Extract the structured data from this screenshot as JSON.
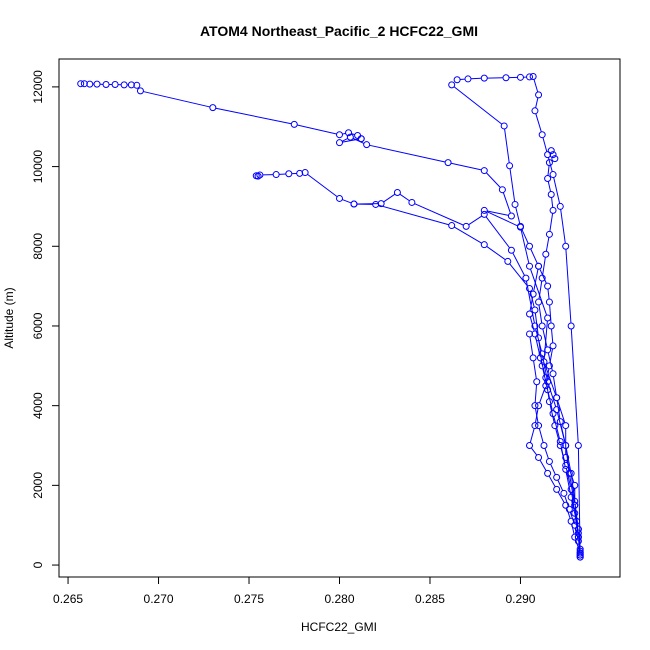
{
  "chart_data": {
    "type": "line",
    "title": "ATOM4 Northeast_Pacific_2 HCFC22_GMI",
    "xlabel": "HCFC22_GMI",
    "ylabel": "Altitude (m)",
    "xlim": [
      0.2645,
      0.2955
    ],
    "ylim": [
      -300,
      12700
    ],
    "xticks": [
      0.265,
      0.27,
      0.275,
      0.28,
      0.285,
      0.29
    ],
    "xtick_labels": [
      "0.265",
      "0.270",
      "0.275",
      "0.280",
      "0.285",
      "0.290"
    ],
    "yticks": [
      0,
      2000,
      4000,
      6000,
      8000,
      10000,
      12000
    ],
    "ytick_labels": [
      "0",
      "2000",
      "4000",
      "6000",
      "8000",
      "10000",
      "12000"
    ],
    "grid": false,
    "legend": "none",
    "series_color": "#0000ff",
    "marker": "open-circle",
    "series": [
      {
        "x": [
          0.2657,
          0.2659,
          0.2662,
          0.2666,
          0.2671,
          0.2676,
          0.2681,
          0.2685,
          0.2688,
          0.269,
          0.273,
          0.2775,
          0.28,
          0.2805,
          0.281,
          0.2812
        ],
        "y": [
          12080,
          12080,
          12070,
          12070,
          12060,
          12060,
          12050,
          12050,
          12040,
          11900,
          11480,
          11060,
          10800,
          10850,
          10780,
          10700
        ]
      },
      {
        "x": [
          0.2812,
          0.28,
          0.2806,
          0.2815,
          0.286,
          0.288,
          0.289,
          0.2895,
          0.288,
          0.29,
          0.2905,
          0.2915,
          0.2913,
          0.292,
          0.2925,
          0.2925,
          0.293,
          0.293,
          0.2931,
          0.2932,
          0.2933
        ],
        "y": [
          10700,
          10600,
          10740,
          10550,
          10100,
          9900,
          9420,
          8760,
          8900,
          8480,
          7500,
          6200,
          5100,
          4200,
          3500,
          2700,
          2000,
          1500,
          1100,
          700,
          300
        ]
      },
      {
        "x": [
          0.2755,
          0.2754,
          0.2756,
          0.2765,
          0.2772,
          0.2778,
          0.2781,
          0.28,
          0.2808,
          0.282,
          0.2862,
          0.288,
          0.2893,
          0.2905,
          0.2908,
          0.291,
          0.2912,
          0.2915,
          0.2918,
          0.2922,
          0.2925,
          0.2928,
          0.2932,
          0.2933
        ],
        "y": [
          9760,
          9770,
          9790,
          9800,
          9820,
          9830,
          9850,
          9200,
          9060,
          9050,
          8520,
          8040,
          7620,
          6940,
          6400,
          5700,
          5000,
          4400,
          3800,
          3100,
          2400,
          1700,
          900,
          350
        ]
      },
      {
        "x": [
          0.2808,
          0.2823,
          0.2832,
          0.284,
          0.287,
          0.288,
          0.2895,
          0.2903,
          0.2908,
          0.2912,
          0.2915,
          0.292,
          0.2925,
          0.2927,
          0.293,
          0.2932,
          0.2933
        ],
        "y": [
          9060,
          9070,
          9350,
          9100,
          8500,
          8800,
          7900,
          7200,
          6000,
          5300,
          4600,
          3900,
          3000,
          2300,
          1500,
          800,
          250
        ]
      },
      {
        "x": [
          0.2865,
          0.2871,
          0.288,
          0.2892,
          0.29,
          0.2905,
          0.2907,
          0.291,
          0.2908,
          0.2912,
          0.2915,
          0.2918,
          0.2922,
          0.2925,
          0.2928,
          0.2932,
          0.2933
        ],
        "y": [
          12180,
          12200,
          12220,
          12230,
          12240,
          12250,
          12260,
          11800,
          11400,
          10800,
          10300,
          9800,
          9000,
          8000,
          6000,
          3000,
          200
        ]
      },
      {
        "x": [
          0.2862,
          0.2891,
          0.2894,
          0.2897,
          0.29,
          0.2905,
          0.291,
          0.2915,
          0.2916,
          0.2917,
          0.2918,
          0.2916,
          0.2914,
          0.291,
          0.2908,
          0.2905,
          0.291,
          0.2915,
          0.292,
          0.2925,
          0.2928,
          0.293,
          0.2933
        ],
        "y": [
          12050,
          11020,
          10020,
          9050,
          8500,
          8000,
          7500,
          7000,
          6600,
          6000,
          5500,
          5000,
          4500,
          4000,
          3500,
          3000,
          2700,
          2300,
          1900,
          1500,
          1100,
          700,
          300
        ]
      },
      {
        "x": [
          0.2917,
          0.2918,
          0.2919,
          0.2916,
          0.2915,
          0.2917,
          0.2918,
          0.2916,
          0.2914,
          0.2912,
          0.291,
          0.2912,
          0.2915,
          0.2918,
          0.292,
          0.2922,
          0.2925,
          0.2928,
          0.293,
          0.2932,
          0.2933
        ],
        "y": [
          10400,
          10300,
          10200,
          10100,
          9700,
          9300,
          8900,
          8300,
          7800,
          7200,
          6600,
          6000,
          5400,
          4800,
          4200,
          3600,
          3000,
          2300,
          1600,
          900,
          400
        ]
      },
      {
        "x": [
          0.291,
          0.2907,
          0.2905,
          0.2908,
          0.2911,
          0.2914,
          0.2916,
          0.2919,
          0.2922,
          0.2925,
          0.2928,
          0.293,
          0.2932,
          0.2933
        ],
        "y": [
          7500,
          6800,
          6300,
          5800,
          5200,
          4700,
          4100,
          3500,
          3000,
          2500,
          1900,
          1300,
          700,
          200
        ]
      },
      {
        "x": [
          0.2905,
          0.2907,
          0.2909,
          0.2908,
          0.291,
          0.2913,
          0.2916,
          0.292,
          0.2924,
          0.2927,
          0.293,
          0.2932,
          0.2933
        ],
        "y": [
          5800,
          5200,
          4600,
          4000,
          3500,
          3000,
          2600,
          2200,
          1800,
          1400,
          1000,
          600,
          250
        ]
      }
    ]
  }
}
